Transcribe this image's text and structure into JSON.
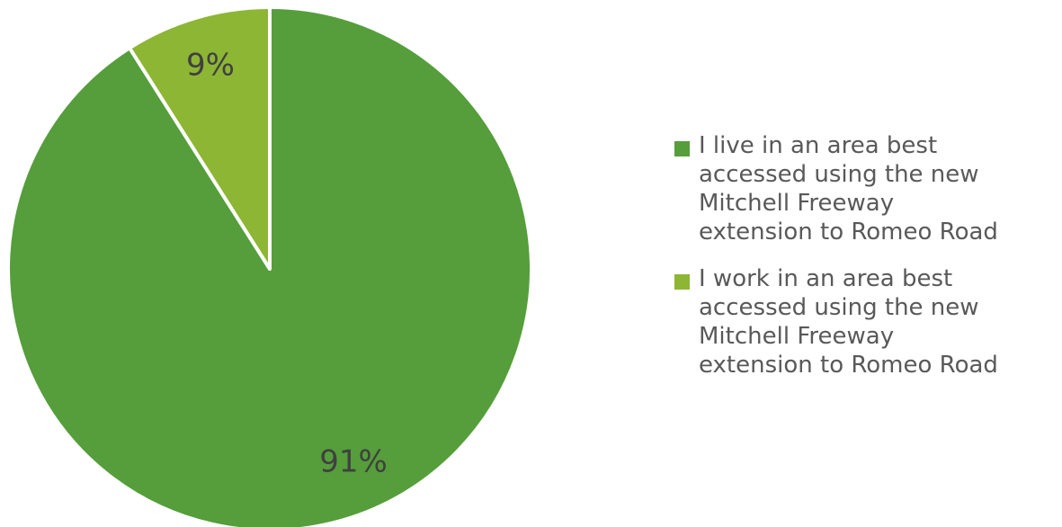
{
  "chart_data": {
    "type": "pie",
    "title": "",
    "start_angle": "12 o'clock, clockwise",
    "legend_position": "right",
    "slices": [
      {
        "label": "I live in an area best accessed using the new Mitchell Freeway extension to Romeo Road",
        "legend_text": "I live in an area best\naccessed using the new\nMitchell Freeway\nextension to Romeo Road",
        "value": 91,
        "display": "91%",
        "color": "#559e3b"
      },
      {
        "label": "I work in an area best accessed using the new Mitchell Freeway extension to Romeo Road",
        "legend_text": "I work in an area best\naccessed using the new\nMitchell Freeway\nextension to Romeo Road",
        "value": 9,
        "display": "9%",
        "color": "#8db634"
      }
    ]
  }
}
